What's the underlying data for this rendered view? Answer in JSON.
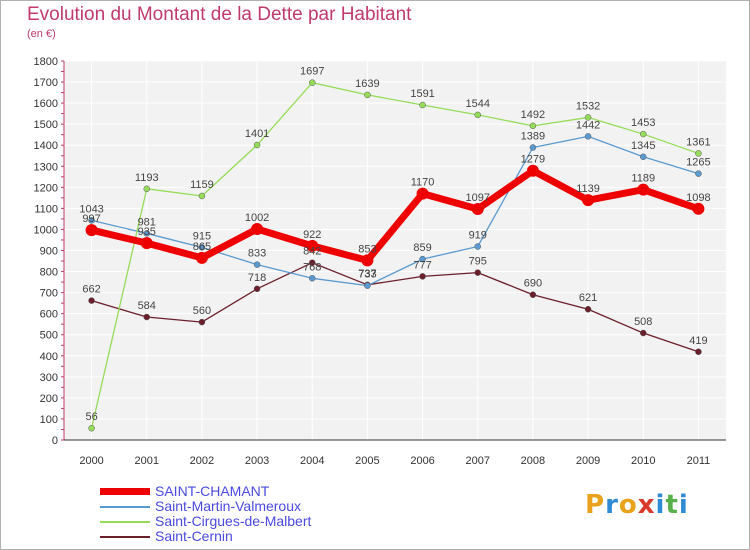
{
  "header": {
    "title": "Evolution du Montant de la Dette par Habitant",
    "subtitle": "(en €)"
  },
  "brand": {
    "letters": [
      "P",
      "r",
      "o",
      "x",
      "i",
      "t",
      "i"
    ],
    "colors": [
      "#e8a21b",
      "#2e8bd4",
      "#e8a21b",
      "#d93a2b",
      "#2e8bd4",
      "#57b04a",
      "#2e8bd4"
    ]
  },
  "chart_data": {
    "type": "line",
    "x": [
      "2000",
      "2001",
      "2002",
      "2003",
      "2004",
      "2005",
      "2006",
      "2007",
      "2008",
      "2009",
      "2010",
      "2011"
    ],
    "ylim": [
      0,
      1800
    ],
    "yticks": [
      0,
      100,
      200,
      300,
      400,
      500,
      600,
      700,
      800,
      900,
      1000,
      1100,
      1200,
      1300,
      1400,
      1500,
      1600,
      1700,
      1800
    ],
    "grid": true,
    "legend_position": "bottom-left",
    "series": [
      {
        "name": "Saint-Cernin",
        "color": "#6b1f2a",
        "values": [
          662,
          584,
          560,
          718,
          842,
          737,
          777,
          795,
          690,
          621,
          508,
          419
        ]
      },
      {
        "name": "Saint-Martin-Valmeroux",
        "color": "#5a9ad0",
        "values": [
          1043,
          981,
          915,
          833,
          768,
          733,
          859,
          919,
          1389,
          1442,
          1345,
          1265
        ]
      },
      {
        "name": "Saint-Cirgues-de-Malbert",
        "color": "#96dc5a",
        "values": [
          56,
          1193,
          1159,
          1401,
          1697,
          1639,
          1591,
          1544,
          1492,
          1532,
          1453,
          1361
        ]
      },
      {
        "name": "SAINT-CHAMANT",
        "color": "#ee0000",
        "values": [
          997,
          935,
          865,
          1002,
          922,
          853,
          1170,
          1097,
          1279,
          1139,
          1189,
          1098
        ]
      }
    ],
    "legend_order": [
      "SAINT-CHAMANT",
      "Saint-Martin-Valmeroux",
      "Saint-Cirgues-de-Malbert",
      "Saint-Cernin"
    ]
  }
}
